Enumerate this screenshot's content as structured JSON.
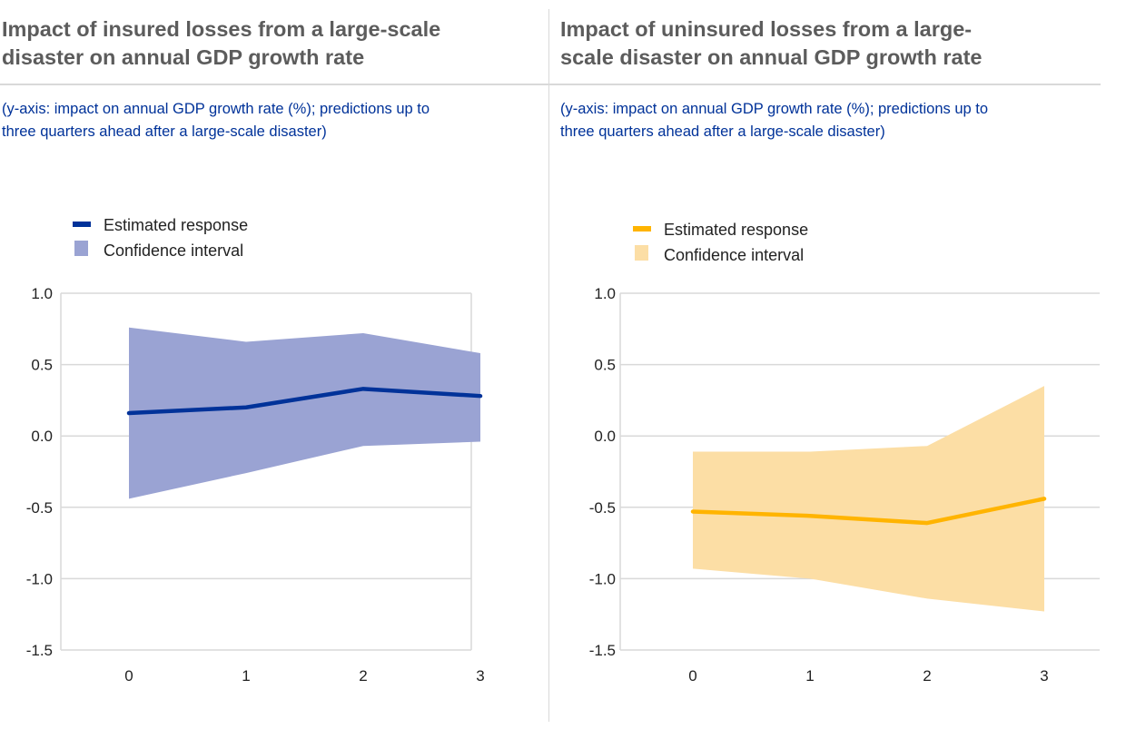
{
  "panels": [
    {
      "title_lines": [
        "Impact of insured losses from a large-scale",
        "disaster on annual GDP growth rate"
      ],
      "subtitle_lines": [
        "(y-axis: impact on annual GDP growth rate (%); predictions up to",
        "three quarters ahead after a large-scale disaster)"
      ]
    },
    {
      "title_lines": [
        "Impact of uninsured losses from a large-",
        "scale disaster on annual GDP growth rate"
      ],
      "subtitle_lines": [
        "(y-axis: impact on annual GDP growth rate (%); predictions up to",
        "three quarters ahead after a large-scale disaster)"
      ]
    }
  ],
  "chart_data": [
    {
      "type": "line",
      "title": "Impact of insured losses from a large-scale disaster on annual GDP growth rate",
      "xlabel": "",
      "ylabel": "impact on annual GDP growth rate (%)",
      "x": [
        0,
        1,
        2,
        3
      ],
      "x_tick_labels": [
        "0",
        "1",
        "2",
        "3"
      ],
      "ylim": [
        -1.5,
        1.0
      ],
      "y_ticks": [
        1.0,
        0.5,
        0.0,
        -0.5,
        -1.0,
        -1.5
      ],
      "y_tick_labels": [
        "1.0",
        "0.5",
        "0.0",
        "-0.5",
        "-1.0",
        "-1.5"
      ],
      "grid": true,
      "legend": {
        "placement": "top-left",
        "entries": [
          "Estimated response",
          "Confidence interval"
        ]
      },
      "series": [
        {
          "name": "Estimated response",
          "kind": "line",
          "color": "#003299",
          "values": [
            0.16,
            0.2,
            0.33,
            0.28
          ]
        },
        {
          "name": "Confidence interval",
          "kind": "band",
          "color": "#9aa3d3",
          "upper": [
            0.76,
            0.66,
            0.72,
            0.58
          ],
          "lower": [
            -0.44,
            -0.26,
            -0.07,
            -0.04
          ]
        }
      ]
    },
    {
      "type": "line",
      "title": "Impact of uninsured losses from a large-scale disaster on annual GDP growth rate",
      "xlabel": "",
      "ylabel": "impact on annual GDP growth rate (%)",
      "x": [
        0,
        1,
        2,
        3
      ],
      "x_tick_labels": [
        "0",
        "1",
        "2",
        "3"
      ],
      "ylim": [
        -1.5,
        1.0
      ],
      "y_ticks": [
        1.0,
        0.5,
        0.0,
        -0.5,
        -1.0,
        -1.5
      ],
      "y_tick_labels": [
        "1.0",
        "0.5",
        "0.0",
        "-0.5",
        "-1.0",
        "-1.5"
      ],
      "grid": true,
      "legend": {
        "placement": "top-left",
        "entries": [
          "Estimated response",
          "Confidence interval"
        ]
      },
      "series": [
        {
          "name": "Estimated response",
          "kind": "line",
          "color": "#ffb400",
          "values": [
            -0.53,
            -0.56,
            -0.61,
            -0.44
          ]
        },
        {
          "name": "Confidence interval",
          "kind": "band",
          "color": "#fcdea5",
          "upper": [
            -0.11,
            -0.11,
            -0.07,
            0.35
          ],
          "lower": [
            -0.93,
            -1.0,
            -1.14,
            -1.23
          ]
        }
      ]
    }
  ]
}
